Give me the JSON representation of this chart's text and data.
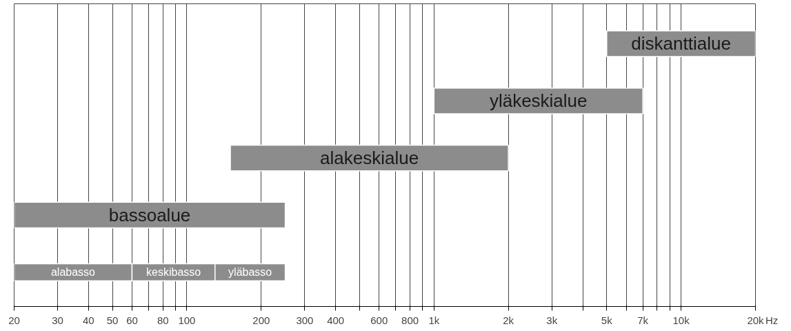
{
  "chart_data": {
    "type": "bar",
    "orientation": "horizontal",
    "log": "x",
    "grid": "x",
    "tick_labels": "x",
    "categories": [
      "diskanttialue",
      "yläkeskialue",
      "alakeskialue",
      "bassoalue",
      null
    ],
    "xlim": [
      20,
      20000
    ],
    "xticks": [
      20,
      30,
      40,
      50,
      60,
      {
        "value": 70,
        "label": null
      },
      80,
      {
        "value": 90,
        "label": null
      },
      100,
      200,
      300,
      400,
      {
        "value": 500,
        "label": null
      },
      600,
      {
        "value": 700,
        "label": null
      },
      800,
      {
        "value": 900,
        "label": null
      },
      {
        "value": 1000,
        "label": "1k"
      },
      {
        "value": 2000,
        "label": "2k"
      },
      {
        "value": 3000,
        "label": "3k"
      },
      {
        "value": 4000,
        "label": null
      },
      {
        "value": 5000,
        "label": "5k"
      },
      {
        "value": 6000,
        "label": null
      },
      {
        "value": 7000,
        "label": "7k"
      },
      {
        "value": 8000,
        "label": null
      },
      {
        "value": 9000,
        "label": null
      },
      {
        "value": 10000,
        "label": "10k"
      },
      {
        "value": 20000,
        "label": "20k"
      }
    ],
    "xlabel": "Hz",
    "series": [
      {
        "color": "#8c8c8c",
        "base": [
          5000,
          1000,
          150,
          20,
          null
        ],
        "values": [
          15000,
          6000,
          1850,
          230,
          null
        ]
      },
      {
        "name": "alabasso",
        "color": "#8c8c8c",
        "base": [
          null,
          null,
          null,
          null,
          20
        ],
        "values": [
          null,
          null,
          null,
          null,
          40
        ]
      },
      {
        "name": "keskibasso",
        "color": "#8c8c8c",
        "base": [
          null,
          null,
          null,
          null,
          60
        ],
        "values": [
          null,
          null,
          null,
          null,
          70
        ]
      },
      {
        "name": "yläbasso",
        "color": "#8c8c8c",
        "base": [
          null,
          null,
          null,
          null,
          130
        ],
        "values": [
          null,
          null,
          null,
          null,
          120
        ]
      }
    ]
  }
}
